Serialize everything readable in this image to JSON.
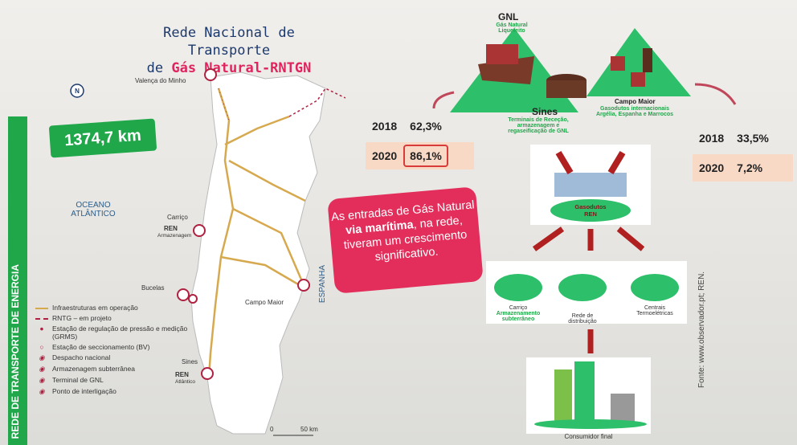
{
  "banner": "REDE DE TRANSPORTE DE ENERGIA",
  "title": {
    "line1": "Rede Nacional de Transporte",
    "line2_prefix": "de",
    "line2_highlight": "Gás Natural-RNTGN"
  },
  "network_length": "1374,7 km",
  "map": {
    "labels": {
      "valenca": "Valença do Minho",
      "ocean": "OCEANO ATLÂNTICO",
      "carrico": "Carriço",
      "carrico_ren": "REN",
      "carrico_sub": "Armazenagem",
      "bucelas": "Bucelas",
      "campo_maior": "Campo Maior",
      "spain": "ESPANHA",
      "sines": "Sines",
      "sines_ren": "REN",
      "sines_sub": "Atlântico"
    },
    "scale": [
      "0",
      "50 km"
    ]
  },
  "legend": [
    "Infraestruturas em operação",
    "RNTG – em projeto",
    "Estação de regulação de pressão e medição (GRMS)",
    "Estação de seccionamento (BV)",
    "Despacho nacional",
    "Armazenagem subterrânea",
    "Terminal de GNL",
    "Ponto de interligação"
  ],
  "gnl": {
    "title": "GNL",
    "subtitle": "Gás Natural Liquefeito",
    "place": "Sines",
    "description": "Terminais de Receção, armazenagem e regaseificação de GNL"
  },
  "campo_maior": {
    "place": "Campo Maior",
    "description": "Gasodutos internacionais Argélia, Espanha e Marrocos"
  },
  "table_sines": {
    "rows": [
      [
        "2018",
        "62,3%"
      ],
      [
        "2020",
        "86,1%"
      ]
    ]
  },
  "table_campo_maior": {
    "rows": [
      [
        "2018",
        "33,5%"
      ],
      [
        "2020",
        "7,2%"
      ]
    ]
  },
  "callout": {
    "before": "As entradas de Gás Natural",
    "bold": "via marítima",
    "after": ", na rede, tiveram um crescimento significativo."
  },
  "hub": {
    "line1": "Gasodutos",
    "line2": "REN"
  },
  "outputs": [
    {
      "name": "Carriço",
      "description": "Armazenamento subterrâneo"
    },
    {
      "name": "Rede de distribuição"
    },
    {
      "name": "Centrais Termoelétricas"
    }
  ],
  "final": "Consumidor final",
  "source": "Fonte: www.observador.pt; REN."
}
